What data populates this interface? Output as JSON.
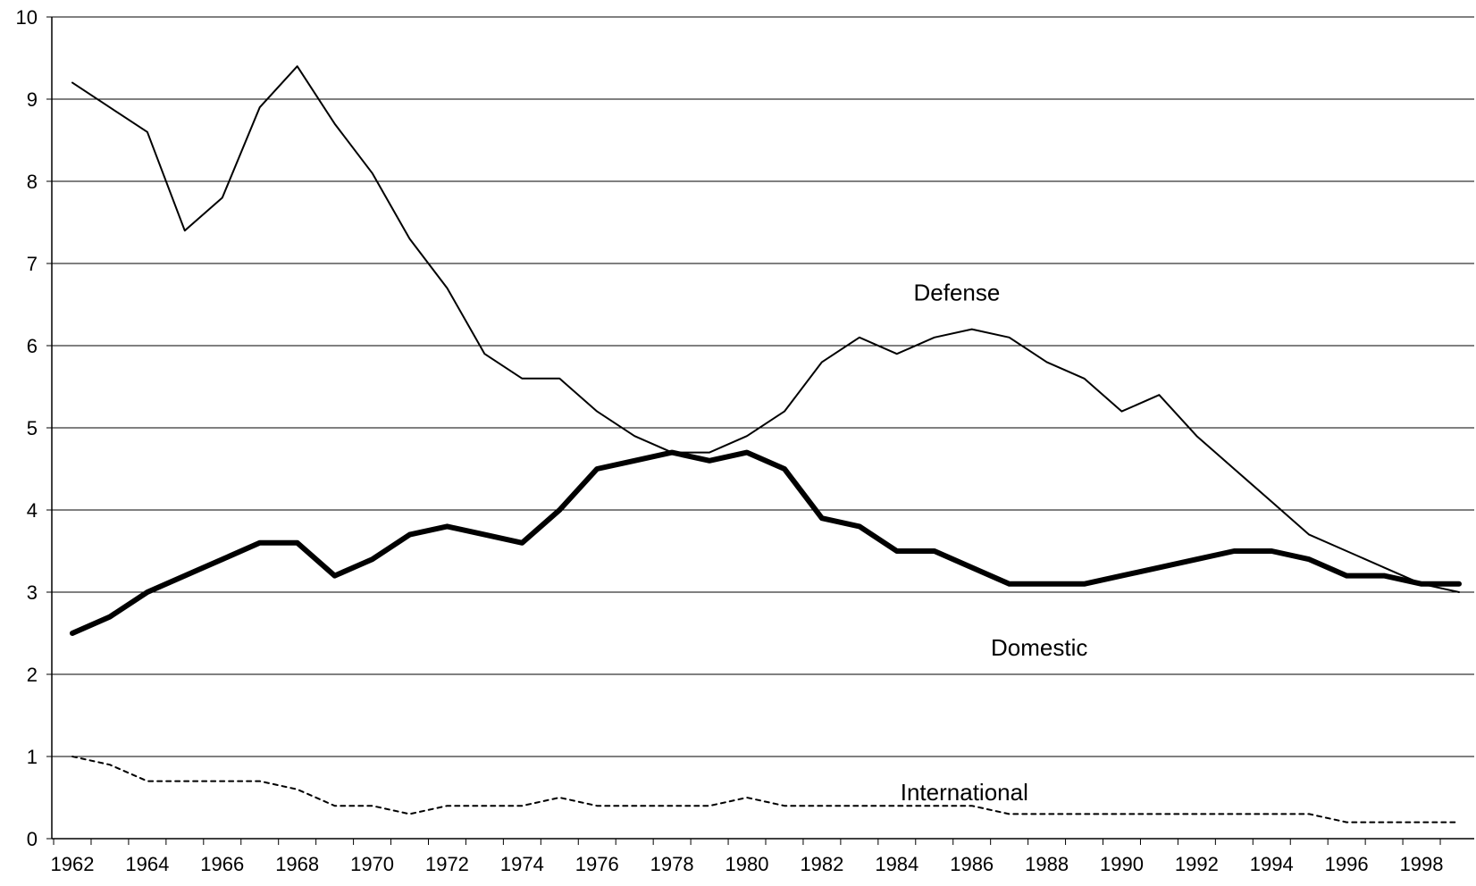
{
  "chart_data": {
    "type": "line",
    "title": "",
    "xlabel": "",
    "ylabel": "",
    "xlim": [
      1962,
      1999
    ],
    "ylim": [
      0,
      10
    ],
    "grid": true,
    "legend": "none (series labeled inline)",
    "x_ticks": [
      "1962",
      "1964",
      "1966",
      "1968",
      "1970",
      "1972",
      "1974",
      "1976",
      "1978",
      "1980",
      "1982",
      "1984",
      "1986",
      "1988",
      "1990",
      "1992",
      "1994",
      "1996",
      "1998"
    ],
    "y_ticks": [
      "0",
      "1",
      "2",
      "3",
      "4",
      "5",
      "6",
      "7",
      "8",
      "9",
      "10"
    ],
    "x": [
      1962,
      1963,
      1964,
      1965,
      1966,
      1967,
      1968,
      1969,
      1970,
      1971,
      1972,
      1973,
      1974,
      1975,
      1976,
      1977,
      1978,
      1979,
      1980,
      1981,
      1982,
      1983,
      1984,
      1985,
      1986,
      1987,
      1988,
      1989,
      1990,
      1991,
      1992,
      1993,
      1994,
      1995,
      1996,
      1997,
      1998,
      1999
    ],
    "series": [
      {
        "name": "Defense",
        "style": "thin",
        "color": "#000000",
        "values": [
          9.2,
          8.9,
          8.6,
          7.4,
          7.8,
          8.9,
          9.4,
          8.7,
          8.1,
          7.3,
          6.7,
          5.9,
          5.6,
          5.6,
          5.2,
          4.9,
          4.7,
          4.7,
          4.9,
          5.2,
          5.8,
          6.1,
          5.9,
          6.1,
          6.2,
          6.1,
          5.8,
          5.6,
          5.2,
          5.4,
          4.9,
          4.5,
          4.1,
          3.7,
          3.5,
          3.3,
          3.1,
          3.0
        ]
      },
      {
        "name": "Domestic",
        "style": "thick",
        "color": "#000000",
        "values": [
          2.5,
          2.7,
          3.0,
          3.2,
          3.4,
          3.6,
          3.6,
          3.2,
          3.4,
          3.7,
          3.8,
          3.7,
          3.6,
          4.0,
          4.5,
          4.6,
          4.7,
          4.6,
          4.7,
          4.5,
          3.9,
          3.8,
          3.5,
          3.5,
          3.3,
          3.1,
          3.1,
          3.1,
          3.2,
          3.3,
          3.4,
          3.5,
          3.5,
          3.4,
          3.2,
          3.2,
          3.1,
          3.1
        ]
      },
      {
        "name": "International",
        "style": "dashed",
        "color": "#000000",
        "values": [
          1.0,
          0.9,
          0.7,
          0.7,
          0.7,
          0.7,
          0.6,
          0.4,
          0.4,
          0.3,
          0.4,
          0.4,
          0.4,
          0.5,
          0.4,
          0.4,
          0.4,
          0.4,
          0.5,
          0.4,
          0.4,
          0.4,
          0.4,
          0.4,
          0.4,
          0.3,
          0.3,
          0.3,
          0.3,
          0.3,
          0.3,
          0.3,
          0.3,
          0.3,
          0.2,
          0.2,
          0.2,
          0.2
        ]
      }
    ],
    "annotations": [
      {
        "text": "Defense",
        "x": 1985.6,
        "y": 6.55
      },
      {
        "text": "Domestic",
        "x": 1987.8,
        "y": 2.23
      },
      {
        "text": "International",
        "x": 1985.8,
        "y": 0.47
      }
    ]
  }
}
